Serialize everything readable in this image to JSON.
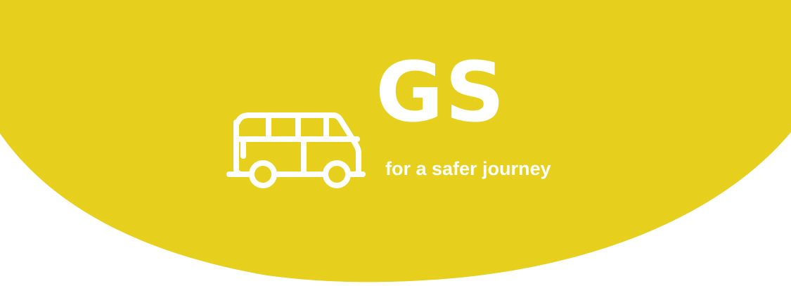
{
  "brand": {
    "name": "GS",
    "tagline": "for a safer journey",
    "icon": "van-icon"
  },
  "colors": {
    "background": "#ffffff",
    "brand_yellow": "#e7cf1e",
    "logo_white": "#ffffff"
  }
}
